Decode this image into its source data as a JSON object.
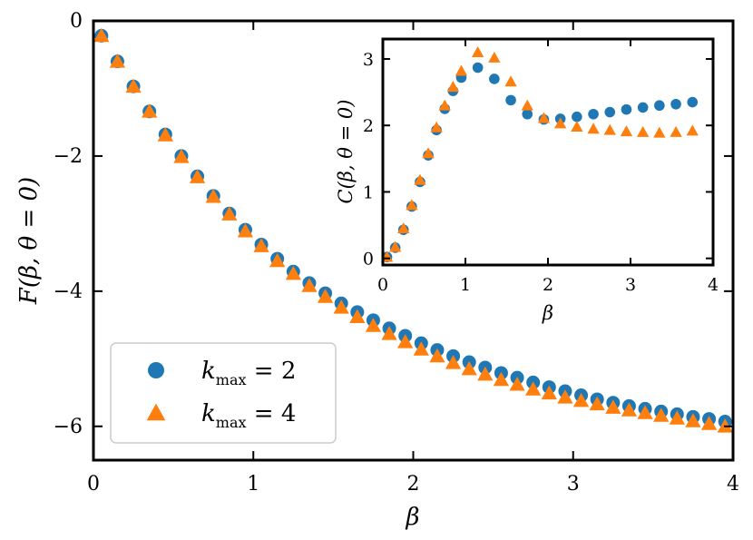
{
  "colors": {
    "kmax2": "#1f77b4",
    "kmax4": "#ff7f0e",
    "axes": "#000000",
    "legend_border": "#cccccc"
  },
  "chart_data": [
    {
      "id": "main",
      "type": "scatter",
      "xlabel": "β",
      "ylabel": "F(β, θ = 0)",
      "xlim": [
        0,
        4
      ],
      "ylim": [
        -6.5,
        0
      ],
      "xticks": [
        0,
        1,
        2,
        3,
        4
      ],
      "xtick_labels": [
        "0",
        "1",
        "2",
        "3",
        "4"
      ],
      "yticks": [
        -6,
        -4,
        -2,
        0
      ],
      "ytick_labels": [
        "−6",
        "−4",
        "−2",
        "0"
      ],
      "grid": false,
      "legend": "lower-left",
      "series": [
        {
          "name": "k_max = 2",
          "marker": "circle",
          "color_key": "kmax2",
          "x": [
            0.05,
            0.15,
            0.25,
            0.35,
            0.45,
            0.55,
            0.65,
            0.75,
            0.85,
            0.95,
            1.05,
            1.15,
            1.25,
            1.35,
            1.45,
            1.55,
            1.65,
            1.75,
            1.85,
            1.95,
            2.05,
            2.15,
            2.25,
            2.35,
            2.45,
            2.55,
            2.65,
            2.75,
            2.85,
            2.95,
            3.05,
            3.15,
            3.25,
            3.35,
            3.45,
            3.55,
            3.65,
            3.75,
            3.85,
            3.95
          ],
          "y": [
            -0.22,
            -0.6,
            -0.97,
            -1.34,
            -1.68,
            -2.0,
            -2.3,
            -2.59,
            -2.85,
            -3.09,
            -3.31,
            -3.52,
            -3.71,
            -3.88,
            -4.03,
            -4.18,
            -4.31,
            -4.43,
            -4.55,
            -4.66,
            -4.77,
            -4.87,
            -4.96,
            -5.05,
            -5.13,
            -5.21,
            -5.28,
            -5.35,
            -5.42,
            -5.48,
            -5.54,
            -5.6,
            -5.65,
            -5.7,
            -5.74,
            -5.78,
            -5.82,
            -5.86,
            -5.89,
            -5.93
          ]
        },
        {
          "name": "k_max = 4",
          "marker": "triangle",
          "color_key": "kmax4",
          "x": [
            0.05,
            0.15,
            0.25,
            0.35,
            0.45,
            0.55,
            0.65,
            0.75,
            0.85,
            0.95,
            1.05,
            1.15,
            1.25,
            1.35,
            1.45,
            1.55,
            1.65,
            1.75,
            1.85,
            1.95,
            2.05,
            2.15,
            2.25,
            2.35,
            2.45,
            2.55,
            2.65,
            2.75,
            2.85,
            2.95,
            3.05,
            3.15,
            3.25,
            3.35,
            3.45,
            3.55,
            3.65,
            3.75,
            3.85,
            3.95
          ],
          "y": [
            -0.22,
            -0.6,
            -0.97,
            -1.34,
            -1.69,
            -2.01,
            -2.31,
            -2.6,
            -2.86,
            -3.11,
            -3.33,
            -3.55,
            -3.74,
            -3.92,
            -4.08,
            -4.24,
            -4.38,
            -4.51,
            -4.63,
            -4.75,
            -4.86,
            -4.96,
            -5.06,
            -5.15,
            -5.23,
            -5.31,
            -5.38,
            -5.45,
            -5.51,
            -5.57,
            -5.62,
            -5.67,
            -5.72,
            -5.76,
            -5.8,
            -5.84,
            -5.88,
            -5.92,
            -5.96,
            -6.0
          ]
        }
      ]
    },
    {
      "id": "inset",
      "type": "scatter",
      "xlabel": "β",
      "ylabel": "C(β, θ = 0)",
      "xlim": [
        0,
        4
      ],
      "ylim": [
        -0.1,
        3.3
      ],
      "xticks": [
        0,
        1,
        2,
        3,
        4
      ],
      "xtick_labels": [
        "0",
        "1",
        "2",
        "3",
        "4"
      ],
      "yticks": [
        0,
        1,
        2,
        3
      ],
      "ytick_labels": [
        "0",
        "1",
        "2",
        "3"
      ],
      "grid": false,
      "series": [
        {
          "name": "k_max = 2",
          "marker": "circle",
          "color_key": "kmax2",
          "x": [
            0.05,
            0.15,
            0.25,
            0.35,
            0.45,
            0.55,
            0.65,
            0.75,
            0.85,
            0.95,
            1.15,
            1.35,
            1.55,
            1.75,
            1.95,
            2.15,
            2.35,
            2.55,
            2.75,
            2.95,
            3.15,
            3.35,
            3.55,
            3.75
          ],
          "y": [
            0.02,
            0.16,
            0.43,
            0.78,
            1.15,
            1.55,
            1.93,
            2.25,
            2.52,
            2.72,
            2.87,
            2.7,
            2.38,
            2.17,
            2.09,
            2.1,
            2.13,
            2.17,
            2.2,
            2.24,
            2.27,
            2.3,
            2.32,
            2.35
          ]
        },
        {
          "name": "k_max = 4",
          "marker": "triangle",
          "color_key": "kmax4",
          "x": [
            0.05,
            0.15,
            0.25,
            0.35,
            0.45,
            0.55,
            0.65,
            0.75,
            0.85,
            0.95,
            1.15,
            1.35,
            1.55,
            1.75,
            1.95,
            2.15,
            2.35,
            2.55,
            2.75,
            2.95,
            3.15,
            3.35,
            3.55,
            3.75
          ],
          "y": [
            0.02,
            0.17,
            0.45,
            0.8,
            1.18,
            1.58,
            1.97,
            2.3,
            2.58,
            2.82,
            3.1,
            3.02,
            2.66,
            2.3,
            2.11,
            2.03,
            1.98,
            1.95,
            1.93,
            1.91,
            1.9,
            1.89,
            1.9,
            1.92
          ]
        }
      ]
    }
  ],
  "legend": {
    "items": [
      {
        "marker": "circle",
        "color_key": "kmax2",
        "label": "k",
        "sub": "max",
        "rest": " = 2"
      },
      {
        "marker": "triangle",
        "color_key": "kmax4",
        "label": "k",
        "sub": "max",
        "rest": " = 4"
      }
    ]
  }
}
